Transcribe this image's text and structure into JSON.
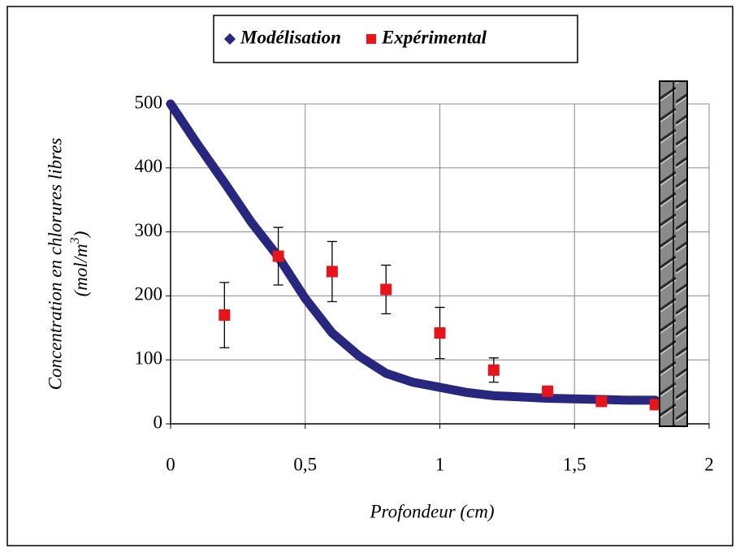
{
  "chart_data": {
    "type": "scatter",
    "x_label": "Profondeur (cm)",
    "y_label": "Concentration en chlorures libres",
    "y_unit": {
      "open": "(mol/m",
      "sup": "3",
      "close": ")"
    },
    "xlim": [
      0,
      2
    ],
    "ylim": [
      0,
      500
    ],
    "xticks": [
      0,
      {
        "value": 0.5,
        "label": "0,5"
      },
      1,
      {
        "value": 1.5,
        "label": "1,5"
      },
      2
    ],
    "yticks": [
      0,
      100,
      200,
      300,
      400,
      500
    ],
    "grid": true,
    "series": [
      {
        "name": "Modélisation",
        "color": "#27277f",
        "marker": "line",
        "x": [
          0,
          0.1,
          0.2,
          0.3,
          0.4,
          0.5,
          0.6,
          0.7,
          0.8,
          0.9,
          1.0,
          1.1,
          1.2,
          1.3,
          1.4,
          1.5,
          1.6,
          1.7,
          1.8
        ],
        "values": [
          500,
          437,
          377,
          315,
          261,
          196,
          142,
          106,
          79,
          65,
          57,
          49,
          44,
          42,
          40,
          39,
          38,
          37,
          37
        ]
      },
      {
        "name": "Expérimental",
        "color": "#e8141b",
        "marker": "square",
        "x": [
          0.2,
          0.4,
          0.6,
          0.8,
          1.0,
          1.2,
          1.4,
          1.6,
          1.8
        ],
        "values": [
          170,
          262,
          238,
          210,
          142,
          84,
          51,
          35,
          30
        ],
        "errors": [
          51,
          45,
          47,
          38,
          40,
          19,
          6,
          null,
          null
        ]
      }
    ]
  }
}
